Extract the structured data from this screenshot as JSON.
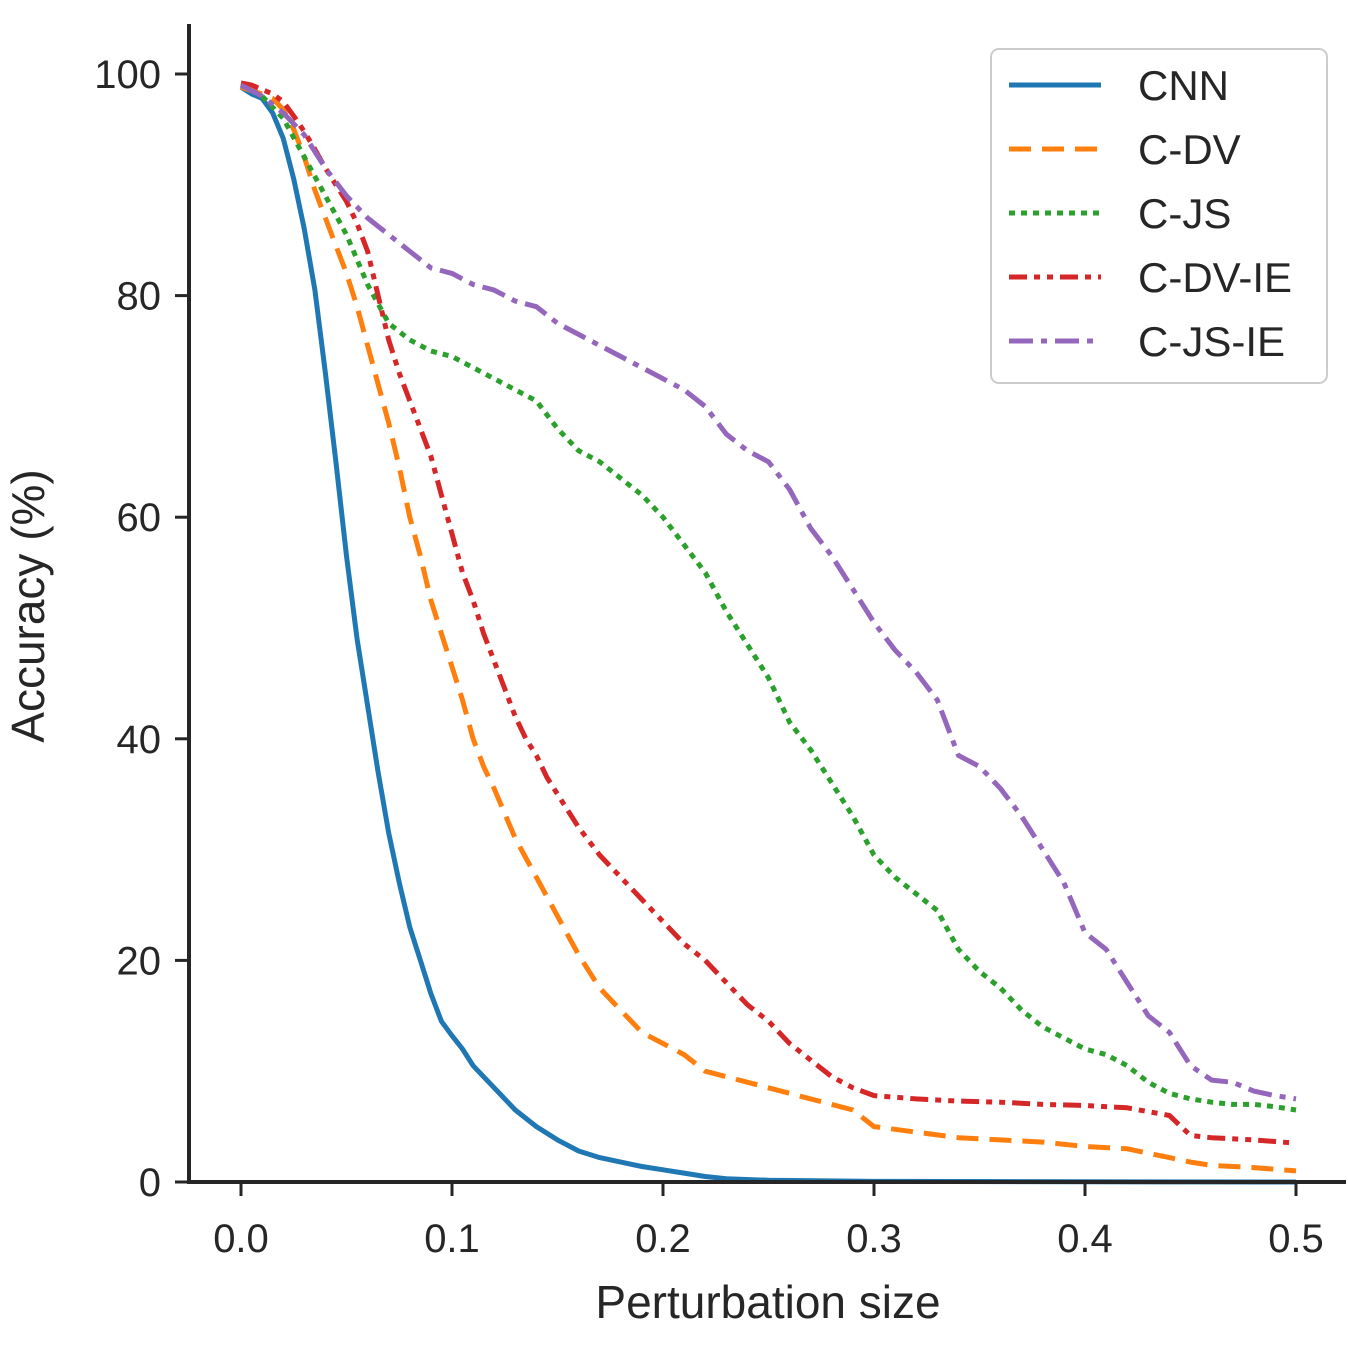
{
  "chart_data": {
    "type": "line",
    "title": "",
    "xlabel": "Perturbation size",
    "ylabel": "Accuracy (%)",
    "xlim": [
      -0.025,
      0.51
    ],
    "ylim": [
      0,
      104
    ],
    "x_ticks": [
      0.0,
      0.1,
      0.2,
      0.3,
      0.4,
      0.5
    ],
    "x_tick_labels": [
      "0.0",
      "0.1",
      "0.2",
      "0.3",
      "0.4",
      "0.5"
    ],
    "y_ticks": [
      0,
      20,
      40,
      60,
      80,
      100
    ],
    "y_tick_labels": [
      "0",
      "20",
      "40",
      "60",
      "80",
      "100"
    ],
    "grid": false,
    "legend_position": "top-right",
    "series": [
      {
        "name": "CNN",
        "color": "#1f77b4",
        "dash": "solid",
        "x": [
          0.0,
          0.005,
          0.01,
          0.015,
          0.02,
          0.025,
          0.03,
          0.035,
          0.04,
          0.045,
          0.05,
          0.055,
          0.06,
          0.065,
          0.07,
          0.075,
          0.08,
          0.085,
          0.09,
          0.095,
          0.1,
          0.105,
          0.11,
          0.12,
          0.13,
          0.14,
          0.15,
          0.16,
          0.17,
          0.18,
          0.19,
          0.2,
          0.21,
          0.22,
          0.23,
          0.25,
          0.3,
          0.4,
          0.5
        ],
        "y": [
          98.8,
          98.2,
          97.8,
          96.5,
          94.2,
          90.5,
          86.0,
          80.5,
          73.0,
          65.0,
          56.5,
          49.0,
          43.0,
          37.0,
          31.5,
          27.0,
          23.0,
          20.0,
          17.0,
          14.5,
          13.2,
          12.0,
          10.5,
          8.5,
          6.5,
          5.0,
          3.8,
          2.8,
          2.2,
          1.8,
          1.4,
          1.1,
          0.8,
          0.5,
          0.3,
          0.15,
          0.05,
          0.02,
          0.0
        ]
      },
      {
        "name": "C-DV",
        "color": "#ff7f0e",
        "dash": "dashed",
        "x": [
          0.0,
          0.005,
          0.01,
          0.015,
          0.02,
          0.025,
          0.03,
          0.035,
          0.04,
          0.045,
          0.05,
          0.055,
          0.06,
          0.065,
          0.07,
          0.075,
          0.08,
          0.085,
          0.09,
          0.095,
          0.1,
          0.105,
          0.11,
          0.115,
          0.12,
          0.13,
          0.14,
          0.15,
          0.16,
          0.17,
          0.18,
          0.19,
          0.2,
          0.21,
          0.22,
          0.23,
          0.25,
          0.27,
          0.29,
          0.3,
          0.32,
          0.34,
          0.36,
          0.38,
          0.4,
          0.42,
          0.44,
          0.45,
          0.46,
          0.48,
          0.5
        ],
        "y": [
          98.8,
          98.5,
          98.2,
          97.8,
          96.8,
          95.0,
          92.5,
          89.5,
          87.0,
          84.5,
          82.0,
          79.0,
          75.5,
          72.0,
          68.5,
          64.5,
          60.0,
          56.5,
          52.5,
          49.5,
          46.5,
          43.5,
          40.0,
          37.5,
          35.5,
          31.0,
          27.5,
          24.0,
          20.5,
          17.5,
          15.5,
          13.5,
          12.5,
          11.5,
          10.0,
          9.5,
          8.5,
          7.5,
          6.5,
          5.0,
          4.5,
          4.0,
          3.8,
          3.6,
          3.2,
          3.0,
          2.2,
          1.8,
          1.5,
          1.3,
          1.0
        ]
      },
      {
        "name": "C-JS",
        "color": "#2ca02c",
        "dash": "dotted",
        "x": [
          0.0,
          0.01,
          0.02,
          0.03,
          0.04,
          0.05,
          0.06,
          0.07,
          0.08,
          0.09,
          0.1,
          0.11,
          0.12,
          0.13,
          0.14,
          0.15,
          0.16,
          0.17,
          0.18,
          0.19,
          0.2,
          0.21,
          0.22,
          0.23,
          0.24,
          0.25,
          0.26,
          0.27,
          0.28,
          0.29,
          0.3,
          0.31,
          0.32,
          0.33,
          0.34,
          0.35,
          0.36,
          0.37,
          0.38,
          0.39,
          0.4,
          0.41,
          0.42,
          0.43,
          0.44,
          0.45,
          0.46,
          0.47,
          0.48,
          0.49,
          0.5
        ],
        "y": [
          99.0,
          98.0,
          96.0,
          92.5,
          89.0,
          85.5,
          81.0,
          77.5,
          76.0,
          75.0,
          74.5,
          73.5,
          72.5,
          71.5,
          70.5,
          68.0,
          66.0,
          65.0,
          63.5,
          62.0,
          60.0,
          57.5,
          55.0,
          51.5,
          48.5,
          45.5,
          41.5,
          39.0,
          36.0,
          33.0,
          29.5,
          27.5,
          26.0,
          24.5,
          21.0,
          19.0,
          17.5,
          15.5,
          14.0,
          13.0,
          12.0,
          11.5,
          10.5,
          9.0,
          8.0,
          7.5,
          7.2,
          7.0,
          7.0,
          6.8,
          6.5
        ]
      },
      {
        "name": "C-DV-IE",
        "color": "#d62728",
        "dash": "dashdotdot",
        "x": [
          0.0,
          0.005,
          0.01,
          0.015,
          0.02,
          0.025,
          0.03,
          0.035,
          0.04,
          0.045,
          0.05,
          0.055,
          0.06,
          0.065,
          0.07,
          0.075,
          0.08,
          0.085,
          0.09,
          0.095,
          0.1,
          0.105,
          0.11,
          0.115,
          0.12,
          0.125,
          0.13,
          0.135,
          0.14,
          0.145,
          0.15,
          0.16,
          0.17,
          0.18,
          0.19,
          0.2,
          0.21,
          0.22,
          0.23,
          0.24,
          0.25,
          0.26,
          0.27,
          0.28,
          0.29,
          0.3,
          0.32,
          0.34,
          0.36,
          0.38,
          0.4,
          0.42,
          0.44,
          0.45,
          0.46,
          0.48,
          0.5
        ],
        "y": [
          99.2,
          99.0,
          98.6,
          98.2,
          97.5,
          96.2,
          94.8,
          93.2,
          91.5,
          90.0,
          88.5,
          86.5,
          84.0,
          80.0,
          76.0,
          73.0,
          70.5,
          68.0,
          65.5,
          62.0,
          58.5,
          55.0,
          52.5,
          49.5,
          47.0,
          44.5,
          42.0,
          40.0,
          38.5,
          36.5,
          35.0,
          32.0,
          29.5,
          27.5,
          25.5,
          23.5,
          21.5,
          20.0,
          18.0,
          16.0,
          14.5,
          12.5,
          11.0,
          9.5,
          8.5,
          7.8,
          7.5,
          7.3,
          7.2,
          7.0,
          6.9,
          6.7,
          6.0,
          4.2,
          4.0,
          3.8,
          3.5
        ]
      },
      {
        "name": "C-JS-IE",
        "color": "#9467bd",
        "dash": "dashdot",
        "x": [
          0.0,
          0.01,
          0.02,
          0.03,
          0.04,
          0.05,
          0.06,
          0.07,
          0.08,
          0.09,
          0.1,
          0.11,
          0.12,
          0.13,
          0.14,
          0.15,
          0.16,
          0.17,
          0.18,
          0.19,
          0.2,
          0.21,
          0.22,
          0.23,
          0.24,
          0.25,
          0.26,
          0.27,
          0.28,
          0.29,
          0.3,
          0.31,
          0.32,
          0.33,
          0.34,
          0.35,
          0.36,
          0.37,
          0.38,
          0.39,
          0.4,
          0.41,
          0.42,
          0.43,
          0.44,
          0.45,
          0.46,
          0.47,
          0.48,
          0.49,
          0.5
        ],
        "y": [
          99.0,
          98.0,
          96.5,
          94.5,
          91.5,
          89.0,
          87.0,
          85.5,
          84.0,
          82.5,
          82.0,
          81.0,
          80.5,
          79.5,
          79.0,
          77.5,
          76.5,
          75.5,
          74.5,
          73.5,
          72.5,
          71.5,
          70.0,
          67.5,
          66.0,
          65.0,
          62.5,
          59.0,
          56.5,
          53.5,
          50.5,
          48.0,
          46.0,
          43.5,
          38.5,
          37.5,
          35.5,
          33.0,
          30.0,
          27.0,
          22.5,
          21.0,
          18.0,
          15.0,
          13.5,
          10.5,
          9.2,
          9.0,
          8.2,
          7.8,
          7.5
        ]
      }
    ]
  }
}
